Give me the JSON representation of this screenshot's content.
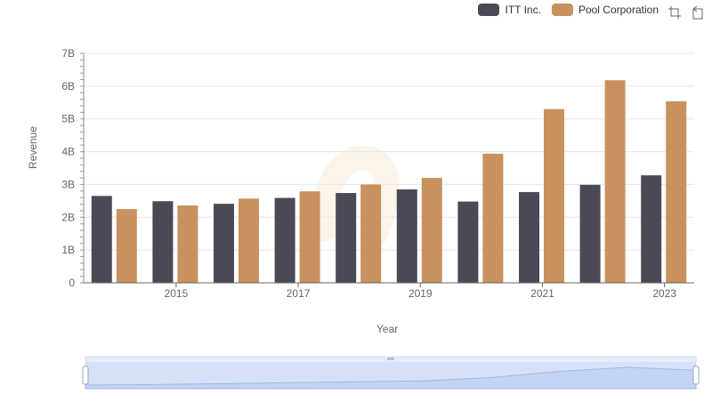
{
  "chart_data": {
    "type": "bar",
    "xlabel": "Year",
    "ylabel": "Revenue",
    "categories": [
      "2014",
      "2015",
      "2016",
      "2017",
      "2018",
      "2019",
      "2020",
      "2021",
      "2022",
      "2023"
    ],
    "x_tick_labels": [
      "2015",
      "2017",
      "2019",
      "2021",
      "2023"
    ],
    "y_ticks": [
      0,
      1,
      2,
      3,
      4,
      5,
      6,
      7
    ],
    "y_tick_labels": [
      "0",
      "1B",
      "2B",
      "3B",
      "4B",
      "5B",
      "6B",
      "7B"
    ],
    "ylim": [
      0,
      7
    ],
    "y_unit": "B",
    "series": [
      {
        "name": "ITT Inc.",
        "color": "#4a4a57",
        "values": [
          2.65,
          2.49,
          2.41,
          2.59,
          2.74,
          2.85,
          2.48,
          2.77,
          2.99,
          3.28
        ]
      },
      {
        "name": "Pool Corporation",
        "color": "#c8915e",
        "values": [
          2.25,
          2.36,
          2.57,
          2.79,
          3.0,
          3.2,
          3.94,
          5.3,
          6.18,
          5.54
        ]
      }
    ],
    "legend": {
      "position": "top-right"
    },
    "grid": true,
    "datazoom": {
      "visible": true
    }
  },
  "toolbox": {
    "icons": [
      "zoom-icon",
      "restore-icon"
    ]
  }
}
